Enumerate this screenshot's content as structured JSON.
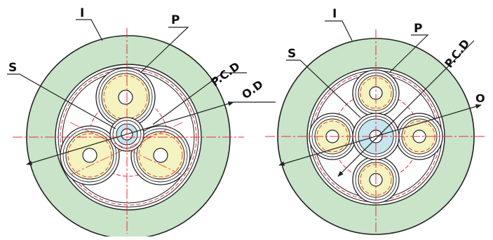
{
  "diagrams": [
    {
      "id": "left",
      "layout": "three-core",
      "labels": {
        "insulation": "I",
        "core": "P",
        "center": "S",
        "pcd": "P.C.D",
        "od": "O.D"
      }
    },
    {
      "id": "right",
      "layout": "four-core",
      "labels": {
        "insulation": "I",
        "core": "P",
        "center": "S",
        "pcd": "P.C.D",
        "od": "O"
      }
    }
  ],
  "colors": {
    "jacket": "#c9e4c8",
    "core_fill": "#f5f3c0",
    "center_fill": "#c7e4ef",
    "outline": "#222222",
    "construction": "#e0313a"
  }
}
